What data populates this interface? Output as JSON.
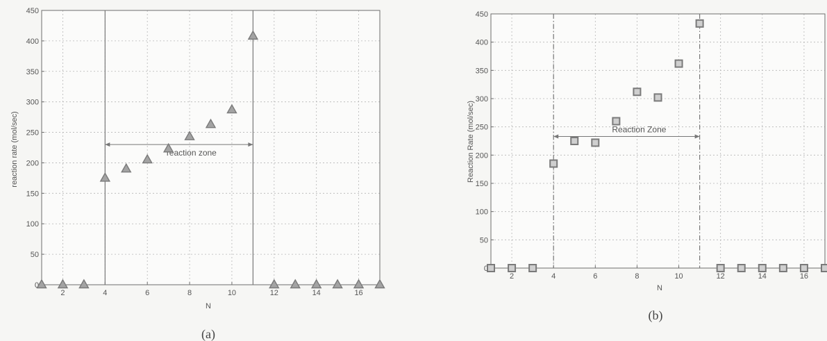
{
  "chart_data": [
    {
      "type": "scatter",
      "marker": "triangle",
      "caption": "(a)",
      "xlabel": "N",
      "ylabel": "reaction rate (mol/sec)",
      "xlim": [
        1,
        17
      ],
      "ylim": [
        0,
        450
      ],
      "xticks": [
        2,
        4,
        6,
        8,
        10,
        12,
        14,
        16
      ],
      "yticks": [
        0,
        50,
        100,
        150,
        200,
        250,
        300,
        350,
        400,
        450
      ],
      "grid": true,
      "x": [
        1,
        2,
        3,
        4,
        5,
        6,
        7,
        8,
        9,
        10,
        11,
        12,
        13,
        14,
        15,
        16,
        17
      ],
      "y": [
        0,
        0,
        0,
        175,
        190,
        205,
        223,
        243,
        263,
        287,
        408,
        0,
        0,
        0,
        0,
        0,
        0
      ],
      "zone": {
        "start": 4,
        "end": 11,
        "arrow_y": 230,
        "label": "reaction zone"
      },
      "colors": {
        "marker": "#7a7a7a",
        "line": "#777777",
        "grid": "#b5b5b5"
      }
    },
    {
      "type": "scatter",
      "marker": "square",
      "caption": "(b)",
      "xlabel": "N",
      "ylabel": "Reaction Rate (mol/sec)",
      "xlim": [
        1,
        17
      ],
      "ylim": [
        0,
        450
      ],
      "xticks": [
        2,
        4,
        6,
        8,
        10,
        12,
        14,
        16
      ],
      "yticks": [
        0,
        50,
        100,
        150,
        200,
        250,
        300,
        350,
        400,
        450
      ],
      "grid": true,
      "x": [
        1,
        2,
        3,
        4,
        5,
        6,
        7,
        8,
        9,
        10,
        11,
        12,
        13,
        14,
        15,
        16,
        17
      ],
      "y": [
        0,
        0,
        0,
        185,
        225,
        222,
        260,
        312,
        302,
        362,
        433,
        0,
        0,
        0,
        0,
        0,
        0
      ],
      "zone": {
        "start": 4,
        "end": 11,
        "arrow_y": 233,
        "label": "Reaction Zone"
      },
      "colors": {
        "marker": "#7a7a7a",
        "line": "#777777",
        "grid": "#b5b5b5"
      }
    }
  ]
}
